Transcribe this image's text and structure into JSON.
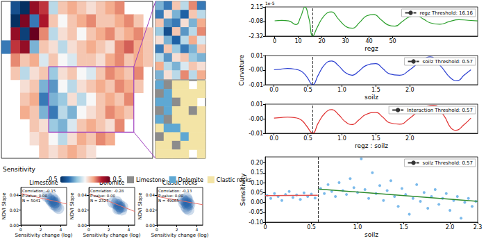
{
  "chart_data": [
    {
      "type": "heatmap",
      "tick_labels": false,
      "colorbar": {
        "title": "Sensitivity",
        "range": [
          -0.5,
          0.5
        ],
        "ticks": [
          -0.5,
          0.5
        ],
        "colors": [
          "#053061",
          "#2166ac",
          "#92c5de",
          "#f7f7f7",
          "#f4a582",
          "#b2182b",
          "#67001f"
        ]
      },
      "values": [
        [
          null,
          -0.4,
          -0.5,
          0.4,
          0.3,
          -0.1,
          0.1,
          0.15,
          0.1,
          0.05,
          0.1,
          0.15,
          0.2,
          null,
          null,
          null
        ],
        [
          null,
          -0.5,
          0.45,
          -0.3,
          0.35,
          0.1,
          0.0,
          0.1,
          0.15,
          0.2,
          0.1,
          0.1,
          0.15,
          0.2,
          0.1,
          null
        ],
        [
          null,
          0.4,
          -0.45,
          0.5,
          0.2,
          -0.1,
          0.05,
          0.1,
          0.0,
          0.1,
          0.15,
          0.2,
          0.1,
          0.15,
          0.2,
          0.1
        ],
        [
          -0.3,
          0.3,
          0.4,
          -0.2,
          0.1,
          0.05,
          -0.1,
          0.05,
          0.1,
          0.15,
          0.1,
          0.05,
          0.2,
          0.25,
          0.15,
          0.1
        ],
        [
          null,
          0.2,
          0.1,
          0.15,
          -0.05,
          0.1,
          0.0,
          -0.05,
          0.1,
          0.1,
          0.05,
          0.15,
          0.2,
          0.1,
          0.15,
          0.1
        ],
        [
          null,
          0.1,
          -0.1,
          0.05,
          0.1,
          -0.15,
          0.05,
          0.1,
          0.0,
          -0.05,
          0.1,
          0.2,
          0.15,
          0.1,
          0.2,
          null
        ],
        [
          null,
          null,
          0.05,
          0.1,
          -0.2,
          -0.25,
          0.0,
          -0.1,
          0.05,
          0.1,
          0.15,
          0.1,
          0.2,
          0.15,
          0.1,
          null
        ],
        [
          null,
          null,
          0.1,
          0.15,
          -0.3,
          -0.2,
          -0.15,
          0.05,
          -0.1,
          0.0,
          0.1,
          0.15,
          0.1,
          0.2,
          null,
          null
        ],
        [
          null,
          null,
          0.15,
          0.1,
          -0.2,
          -0.3,
          -0.1,
          -0.2,
          0.0,
          0.05,
          0.1,
          0.2,
          0.15,
          0.1,
          null,
          null
        ],
        [
          null,
          null,
          null,
          0.1,
          0.05,
          -0.15,
          -0.2,
          -0.05,
          0.1,
          0.15,
          0.1,
          0.05,
          0.2,
          null,
          null,
          null
        ],
        [
          null,
          null,
          null,
          0.05,
          0.1,
          0.0,
          -0.1,
          0.05,
          0.15,
          0.1,
          0.2,
          0.15,
          null,
          null,
          null,
          null
        ],
        [
          null,
          null,
          null,
          null,
          0.1,
          0.05,
          0.1,
          0.15,
          0.1,
          0.05,
          null,
          null,
          null,
          null,
          null,
          null
        ]
      ]
    },
    {
      "type": "heatmap",
      "tick_labels": false,
      "values": [
        [
          -0.2,
          -0.3,
          0.1,
          -0.1,
          0.2,
          -0.3
        ],
        [
          -0.3,
          0.05,
          -0.2,
          -0.35,
          0.1,
          -0.1
        ],
        [
          0.1,
          -0.25,
          -0.3,
          0.05,
          -0.2,
          0.15
        ],
        [
          -0.15,
          -0.4,
          0.1,
          -0.25,
          -0.1,
          0.2
        ],
        [
          0.05,
          -0.2,
          -0.35,
          -0.1,
          0.15,
          -0.05
        ],
        [
          -0.3,
          0.1,
          -0.15,
          -0.3,
          -0.2,
          0.1
        ],
        [
          -0.1,
          -0.25,
          0.05,
          0.1,
          -0.15,
          -0.2
        ],
        [
          0.15,
          -0.1,
          -0.2,
          -0.05,
          0.1,
          0.05
        ],
        [
          -0.2,
          0.05,
          -0.1,
          0.2,
          -0.1,
          0.15
        ]
      ]
    },
    {
      "type": "category_map",
      "tick_labels": false,
      "classes": [
        {
          "name": "Limestone",
          "color": "#8c8c8c"
        },
        {
          "name": "Dolomite",
          "color": "#5fa8d3"
        },
        {
          "name": "Clastic rocks",
          "color": "#f3e4a6"
        }
      ],
      "values": [
        [
          1,
          0,
          2,
          2,
          null,
          2
        ],
        [
          0,
          1,
          2,
          2,
          2,
          2
        ],
        [
          1,
          1,
          0,
          2,
          2,
          null
        ],
        [
          0,
          1,
          2,
          2,
          0,
          2
        ],
        [
          1,
          0,
          2,
          2,
          2,
          2
        ],
        [
          2,
          1,
          1,
          2,
          2,
          2
        ],
        [
          0,
          2,
          2,
          1,
          2,
          2
        ],
        [
          2,
          2,
          0,
          2,
          2,
          2
        ],
        [
          2,
          2,
          2,
          2,
          null,
          2
        ]
      ]
    },
    {
      "type": "density",
      "title": "Limestone",
      "grid": false,
      "annotations": [
        "Correlation: -0.15",
        "P-value: 0.00",
        "N = 5041"
      ],
      "xlabel": "Sensitivity change (log)",
      "ylabel": "NDVI Slope",
      "xlim": [
        0,
        4.6
      ],
      "xticks": [
        0,
        2,
        4
      ],
      "ylim": [
        0,
        0.05
      ],
      "yticks": [
        {
          "value": 0,
          "label": "0.00"
        },
        {
          "value": 0.02,
          "label": "0.02"
        },
        {
          "value": 0.04,
          "label": "0.04"
        }
      ],
      "color": "#1f5ea8",
      "x": [
        2.6,
        2.9,
        3.0,
        3.1,
        3.2,
        3.3,
        3.3,
        3.4,
        3.5,
        3.5,
        3.6,
        3.8,
        3.2,
        3.4
      ],
      "y": [
        0.038,
        0.035,
        0.033,
        0.031,
        0.032,
        0.03,
        0.027,
        0.029,
        0.026,
        0.03,
        0.024,
        0.022,
        0.036,
        0.033
      ],
      "fit": {
        "x": [
          0,
          4.6
        ],
        "values": [
          0.042,
          0.028
        ],
        "color": "#e8706a"
      }
    },
    {
      "type": "density",
      "title": "Dolomite",
      "grid": false,
      "annotations": [
        "Correlation: -0.28",
        "P-value: 0.00",
        "N = 2327"
      ],
      "xlabel": "Sensitivity change (log)",
      "ylabel": "NDVI Slope",
      "xlim": [
        0,
        4.6
      ],
      "xticks": [
        0,
        2,
        4
      ],
      "ylim": [
        0,
        0.05
      ],
      "yticks": [
        {
          "value": 0,
          "label": "0.00"
        },
        {
          "value": 0.02,
          "label": "0.02"
        },
        {
          "value": 0.04,
          "label": "0.04"
        }
      ],
      "color": "#1f5ea8",
      "x": [
        2.4,
        2.7,
        2.9,
        3.0,
        3.1,
        3.0,
        3.2,
        3.3,
        2.8,
        3.1,
        2.9,
        3.4
      ],
      "y": [
        0.03,
        0.028,
        0.027,
        0.025,
        0.024,
        0.022,
        0.023,
        0.02,
        0.031,
        0.027,
        0.021,
        0.024
      ],
      "fit": {
        "x": [
          0,
          4.6
        ],
        "values": [
          0.042,
          0.018
        ],
        "color": "#e8706a"
      }
    },
    {
      "type": "density",
      "title": "Clastic rocks",
      "grid": false,
      "annotations": [
        "Correlation: -0.13",
        "P-value: 0.00",
        "N = 49065"
      ],
      "xlabel": "Sensitivity change (log)",
      "ylabel": "NDVI Slope",
      "xlim": [
        0,
        4.6
      ],
      "xticks": [
        0,
        2,
        4
      ],
      "ylim": [
        0,
        0.05
      ],
      "yticks": [
        {
          "value": 0,
          "label": "0.00"
        },
        {
          "value": 0.02,
          "label": "0.02"
        },
        {
          "value": 0.04,
          "label": "0.04"
        }
      ],
      "color": "#1f5ea8",
      "x": [
        2.6,
        2.8,
        2.9,
        3.0,
        3.0,
        3.1,
        3.2,
        3.0,
        2.9,
        3.3,
        3.1,
        2.7,
        3.0,
        3.2
      ],
      "y": [
        0.034,
        0.032,
        0.03,
        0.028,
        0.036,
        0.026,
        0.029,
        0.022,
        0.024,
        0.027,
        0.033,
        0.029,
        0.031,
        0.02
      ],
      "fit": {
        "x": [
          0,
          4.6
        ],
        "values": [
          0.038,
          0.027
        ],
        "color": "#e8706a"
      }
    },
    {
      "type": "line",
      "grid": false,
      "xlabel": "regz",
      "annotations": [
        "1e-5"
      ],
      "threshold": 16.16,
      "threshold_label": "regz Threshold: 16.16",
      "xlim": [
        -4,
        86
      ],
      "xticks": [
        0,
        10,
        20,
        30,
        40,
        50
      ],
      "ylim": [
        -2.32,
        2.15
      ],
      "yticks": [
        2.15,
        -0.08,
        -2.32
      ],
      "color": "#2ca02c",
      "x": [
        0,
        3,
        6,
        9,
        11,
        12.8,
        14.5,
        16.16,
        18,
        21,
        24,
        27,
        30,
        33,
        36,
        39,
        42,
        45,
        48,
        51,
        54,
        57,
        60,
        63,
        66,
        70,
        74,
        78,
        82,
        86
      ],
      "values": [
        0.02,
        0.08,
        0.0,
        -0.55,
        0.6,
        2.15,
        0.4,
        -2.32,
        -1.0,
        0.8,
        1.4,
        0.3,
        -0.8,
        -1.1,
        -0.2,
        0.8,
        1.0,
        0.2,
        -0.6,
        -0.8,
        -0.1,
        0.6,
        0.8,
        0.3,
        -0.3,
        -0.5,
        -0.1,
        0.2,
        0.1,
        0.0
      ]
    },
    {
      "type": "line",
      "grid": false,
      "xlabel": "soilz",
      "ylabel": "Curvature",
      "threshold": 0.57,
      "threshold_label": "soilz Threshold: 0.57",
      "xlim": [
        -0.13,
        3.0
      ],
      "xticks": [
        {
          "value": 0,
          "label": "0.0"
        },
        0.5,
        {
          "value": 1,
          "label": "1.0"
        },
        1.5,
        {
          "value": 2,
          "label": "2.0"
        }
      ],
      "ylim": [
        -0.011,
        0.0105
      ],
      "yticks": [
        {
          "value": 0.0105,
          "label": "0.01"
        },
        {
          "value": -0.0002,
          "label": "-0.00"
        },
        {
          "value": -0.011,
          "label": "-0.01"
        }
      ],
      "color": "#2b3fd1",
      "x": [
        0,
        0.1,
        0.2,
        0.3,
        0.4,
        0.48,
        0.57,
        0.65,
        0.75,
        0.85,
        0.95,
        1.05,
        1.15,
        1.25,
        1.35,
        1.5,
        1.6,
        1.7,
        1.85,
        2.0,
        2.15,
        2.3,
        2.45,
        2.6,
        2.7,
        2.8,
        2.9
      ],
      "values": [
        0.0,
        0.0005,
        0.001,
        0.0005,
        -0.001,
        -0.005,
        -0.011,
        -0.004,
        0.004,
        0.0065,
        0.003,
        -0.002,
        -0.004,
        -0.001,
        0.003,
        0.0045,
        0.001,
        -0.003,
        -0.004,
        0.0,
        0.006,
        0.0095,
        0.003,
        -0.006,
        -0.008,
        -0.004,
        0.0
      ]
    },
    {
      "type": "line",
      "grid": false,
      "xlabel": "regz : soilz",
      "threshold": 0.57,
      "threshold_label": "Interaction Threshold: 0.57",
      "xlim": [
        -0.13,
        3.0
      ],
      "xticks": [
        {
          "value": 0,
          "label": "0.0"
        },
        0.5,
        {
          "value": 1,
          "label": "1.0"
        },
        1.5,
        {
          "value": 2,
          "label": "2.0"
        }
      ],
      "ylim": [
        -0.0106,
        0.0098
      ],
      "yticks": [
        {
          "value": 0.0098,
          "label": "0.01"
        },
        {
          "value": -0.0004,
          "label": "-0.00"
        },
        {
          "value": -0.0106,
          "label": "-0.01"
        }
      ],
      "color": "#e03030",
      "x": [
        0,
        0.1,
        0.2,
        0.3,
        0.4,
        0.48,
        0.57,
        0.65,
        0.75,
        0.85,
        0.95,
        1.05,
        1.15,
        1.25,
        1.35,
        1.5,
        1.6,
        1.7,
        1.85,
        2.0,
        2.15,
        2.35,
        2.5,
        2.6,
        2.68,
        2.8,
        2.9
      ],
      "values": [
        0.0,
        0.0004,
        0.0008,
        0.0004,
        -0.0012,
        -0.0055,
        -0.0105,
        -0.0035,
        0.0035,
        0.006,
        0.0025,
        -0.0025,
        -0.0045,
        -0.0012,
        0.0025,
        0.004,
        0.0008,
        -0.0032,
        -0.0042,
        0.0,
        0.0055,
        0.009,
        0.002,
        -0.0065,
        -0.0085,
        -0.0045,
        0.0
      ]
    },
    {
      "type": "scatter",
      "grid": false,
      "xlabel": "soilz",
      "ylabel": "Sensitivity",
      "threshold": 0.57,
      "threshold_label": "soilz Threshold: 0.57",
      "xlim": [
        0,
        2.3
      ],
      "xticks": [
        0,
        0.5,
        {
          "value": 1,
          "label": "1.0"
        },
        1.5,
        {
          "value": 2,
          "label": "2.0"
        },
        2.3
      ],
      "ylim": [
        -0.1,
        0.23
      ],
      "yticks": [
        {
          "value": -0.1,
          "label": "-0.10"
        },
        {
          "value": -0.05,
          "label": "-0.05"
        },
        {
          "value": 0,
          "label": "0.00"
        },
        {
          "value": 0.05,
          "label": "0.05"
        },
        {
          "value": 0.1,
          "label": "0.10"
        },
        {
          "value": 0.15,
          "label": "0.15"
        },
        {
          "value": 0.2,
          "label": "0.20"
        }
      ],
      "color": "#5aa9e6",
      "marker": "circle",
      "x": [
        0.02,
        0.06,
        0.1,
        0.14,
        0.18,
        0.22,
        0.26,
        0.3,
        0.34,
        0.38,
        0.42,
        0.46,
        0.5,
        0.54,
        0.6,
        0.64,
        0.68,
        0.72,
        0.76,
        0.8,
        0.84,
        0.88,
        0.92,
        0.96,
        1.0,
        1.04,
        1.08,
        1.12,
        1.16,
        1.2,
        1.24,
        1.28,
        1.32,
        1.36,
        1.4,
        1.44,
        1.48,
        1.52,
        1.56,
        1.6,
        1.64,
        1.68,
        1.72,
        1.76,
        1.8,
        1.84,
        1.88,
        1.92,
        1.96,
        2.0,
        2.04,
        2.08,
        2.12,
        2.16,
        2.2,
        2.24,
        2.28
      ],
      "values": [
        0.035,
        0.02,
        0.045,
        0.03,
        0.01,
        0.04,
        0.055,
        0.025,
        0.038,
        0.015,
        0.048,
        0.03,
        0.042,
        0.022,
        0.07,
        0.045,
        0.09,
        0.055,
        0.03,
        0.1,
        0.06,
        0.04,
        0.12,
        0.075,
        0.05,
        0.22,
        0.065,
        0.02,
        0.15,
        0.045,
        0.085,
        0.01,
        0.06,
        0.11,
        0.03,
        -0.02,
        0.07,
        0.04,
        -0.06,
        0.02,
        0.09,
        0.005,
        0.05,
        -0.03,
        0.03,
        0.065,
        -0.01,
        0.02,
        0.045,
        -0.04,
        0.01,
        0.03,
        -0.08,
        0.0,
        0.02,
        -0.02,
        0.005
      ],
      "fits": [
        {
          "x": [
            0,
            0.57
          ],
          "values": [
            0.034,
            0.036
          ],
          "color": "#e0524f"
        },
        {
          "x": [
            0.57,
            2.3
          ],
          "values": [
            0.068,
            0.005
          ],
          "color": "#2e8b2e"
        }
      ]
    }
  ]
}
